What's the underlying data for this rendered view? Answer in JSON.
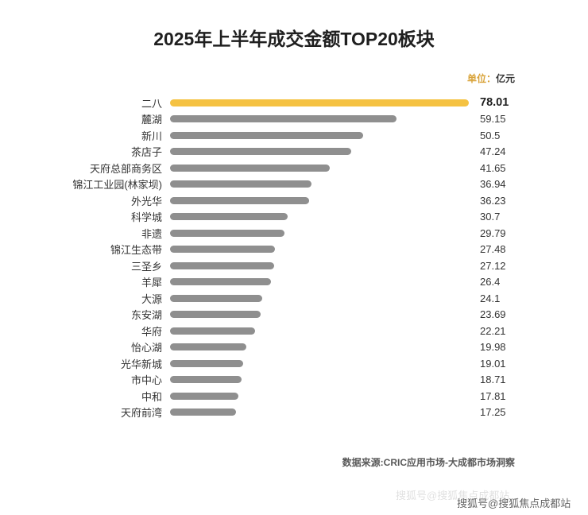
{
  "title": "2025年上半年成交金额TOP20板块",
  "unit": {
    "prefix": "单位：",
    "value": "亿元"
  },
  "chart_data": {
    "type": "bar",
    "orientation": "horizontal",
    "title": "2025年上半年成交金额TOP20板块",
    "unit_label": "单位：亿元",
    "categories": [
      "二八",
      "麓湖",
      "新川",
      "茶店子",
      "天府总部商务区",
      "锦江工业园(林家坝)",
      "外光华",
      "科学城",
      "非遗",
      "锦江生态带",
      "三圣乡",
      "羊犀",
      "大源",
      "东安湖",
      "华府",
      "怡心湖",
      "光华新城",
      "市中心",
      "中和",
      "天府前湾"
    ],
    "values": [
      78.01,
      59.15,
      50.5,
      47.24,
      41.65,
      36.94,
      36.23,
      30.7,
      29.79,
      27.48,
      27.12,
      26.4,
      24.1,
      23.69,
      22.21,
      19.98,
      19.01,
      18.71,
      17.81,
      17.25
    ],
    "value_labels": [
      "78.01",
      "59.15",
      "50.5",
      "47.24",
      "41.65",
      "36.94",
      "36.23",
      "30.7",
      "29.79",
      "27.48",
      "27.12",
      "26.4",
      "24.1",
      "23.69",
      "22.21",
      "19.98",
      "19.01",
      "18.71",
      "17.81",
      "17.25"
    ],
    "xlim": [
      0,
      78.01
    ],
    "highlight_index": 0,
    "highlight_color": "#F5C242",
    "bar_color": "#8F8F8F",
    "grid": false,
    "legend": "none"
  },
  "source": "数据来源:CRIC应用市场-大成都市场洞察",
  "watermark": {
    "text": "搜狐号@搜狐焦点成都站",
    "faint_text": "搜狐号@搜狐焦点成都站"
  }
}
